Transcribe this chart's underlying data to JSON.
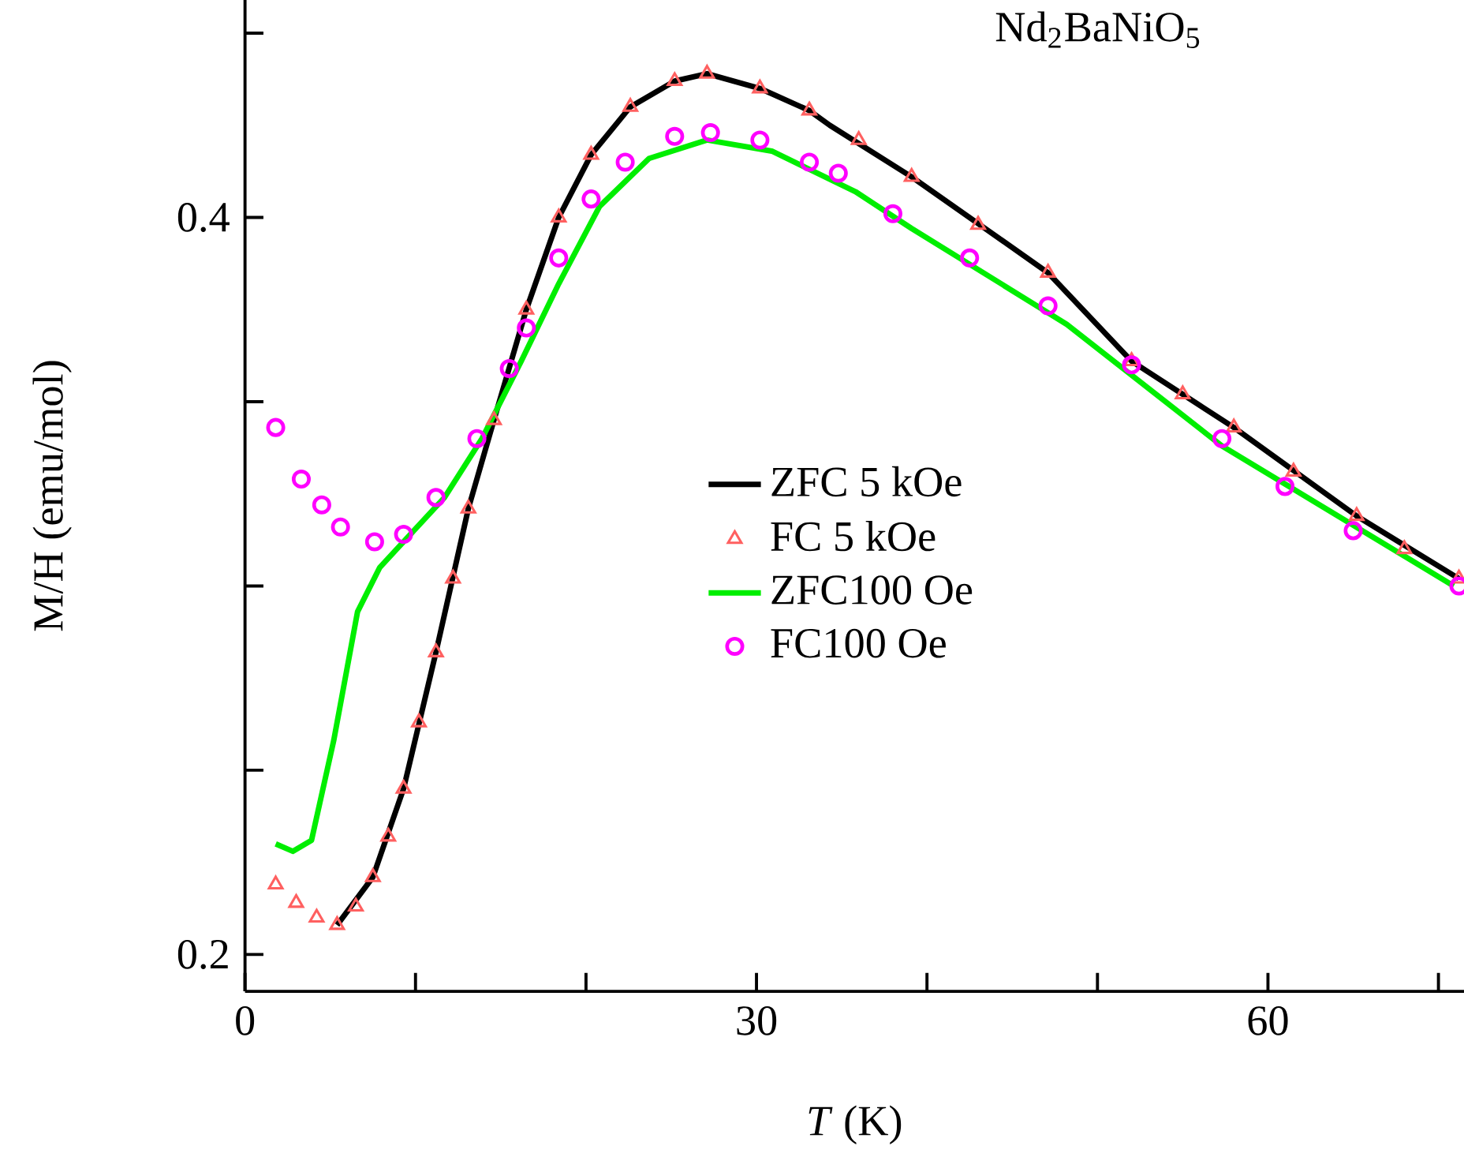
{
  "chart_data": {
    "type": "line",
    "title": "Nd$_{2}$BaNiO$_{5}$",
    "xlabel": "*T* (K)",
    "ylabel": "M/H (emu/mol)",
    "xlim": [
      0,
      71.5
    ],
    "ylim": [
      0.19,
      0.459
    ],
    "xticks": [
      0,
      {
        "value": 10,
        "label": null
      },
      {
        "value": 20,
        "label": null
      },
      30,
      {
        "value": 40,
        "label": null
      },
      {
        "value": 50,
        "label": null
      },
      60,
      {
        "value": 70,
        "label": null
      }
    ],
    "yticks": [
      0.2,
      {
        "value": 0.25,
        "label": null
      },
      {
        "value": 0.3,
        "label": null
      },
      {
        "value": 0.35,
        "label": null
      },
      0.4,
      {
        "value": 0.45,
        "label": null
      }
    ],
    "legend": "right",
    "series": [
      {
        "name": "ZFC 5 kOe",
        "marker": "none",
        "color": "#000000",
        "x": [
          5.4,
          7.5,
          9.3,
          11.2,
          13.1,
          14.6,
          16.5,
          18.4,
          20.3,
          22.6,
          25.2,
          27.1,
          30.2,
          33.1,
          34.3,
          39.1,
          47.1,
          52.0,
          58.0,
          65.2,
          71.2
        ],
        "values": [
          0.208,
          0.221,
          0.245,
          0.282,
          0.321,
          0.345,
          0.375,
          0.4,
          0.417,
          0.43,
          0.437,
          0.439,
          0.435,
          0.429,
          0.425,
          0.411,
          0.385,
          0.361,
          0.343,
          0.319,
          0.302
        ]
      },
      {
        "name": "FC 5 kOe",
        "type": "scatter",
        "marker": "triangle",
        "color": "#ff6060",
        "x": [
          1.8,
          3.0,
          4.2,
          5.4,
          6.5,
          7.5,
          8.4,
          9.3,
          10.2,
          11.2,
          12.2,
          13.1,
          14.6,
          16.5,
          18.4,
          20.3,
          22.6,
          25.2,
          27.1,
          30.2,
          33.1,
          36.0,
          39.1,
          43.0,
          47.1,
          52.0,
          55.0,
          58.0,
          61.5,
          65.2,
          68.0,
          71.2
        ],
        "values": [
          0.219,
          0.214,
          0.21,
          0.208,
          0.213,
          0.221,
          0.232,
          0.245,
          0.263,
          0.282,
          0.302,
          0.321,
          0.345,
          0.375,
          0.4,
          0.417,
          0.43,
          0.437,
          0.439,
          0.435,
          0.429,
          0.421,
          0.411,
          0.398,
          0.385,
          0.361,
          0.352,
          0.343,
          0.331,
          0.319,
          0.31,
          0.302
        ]
      },
      {
        "name": "ZFC100 Oe",
        "marker": "none",
        "color": "#00ee00",
        "x": [
          1.8,
          2.8,
          3.9,
          5.2,
          6.6,
          7.9,
          9.3,
          11.7,
          13.9,
          16.2,
          18.4,
          20.8,
          23.7,
          27.1,
          30.9,
          35.8,
          39.1,
          48.2,
          57.3,
          70.9
        ],
        "values": [
          0.23,
          0.228,
          0.231,
          0.258,
          0.293,
          0.305,
          0.312,
          0.324,
          0.34,
          0.361,
          0.382,
          0.403,
          0.416,
          0.421,
          0.418,
          0.407,
          0.397,
          0.371,
          0.338,
          0.3
        ]
      },
      {
        "name": "FC100 Oe",
        "type": "scatter",
        "marker": "circle",
        "color": "#ff00ff",
        "x": [
          1.8,
          3.3,
          4.5,
          5.6,
          7.6,
          9.3,
          11.2,
          13.6,
          15.5,
          16.5,
          18.4,
          20.3,
          22.3,
          25.2,
          27.3,
          30.2,
          33.1,
          34.8,
          38.0,
          42.5,
          47.1,
          52.0,
          57.3,
          61.0,
          65.0,
          71.2
        ],
        "values": [
          0.343,
          0.329,
          0.322,
          0.316,
          0.312,
          0.314,
          0.324,
          0.34,
          0.359,
          0.37,
          0.389,
          0.405,
          0.415,
          0.422,
          0.423,
          0.421,
          0.415,
          0.412,
          0.401,
          0.389,
          0.376,
          0.36,
          0.34,
          0.327,
          0.315,
          0.3
        ]
      }
    ]
  }
}
